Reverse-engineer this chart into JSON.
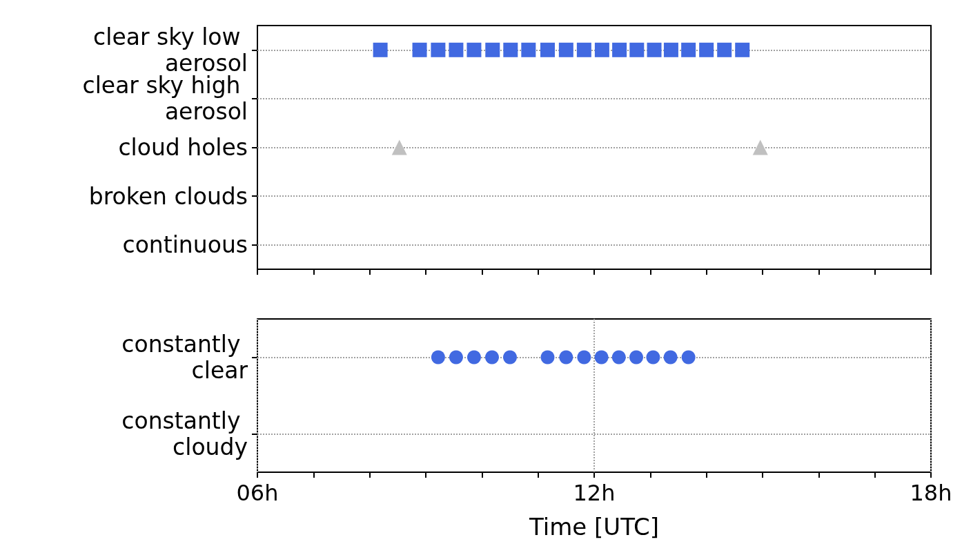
{
  "chart_data": [
    {
      "type": "scatter",
      "orientation": "horizontal",
      "categories": [
        "clear sky low aerosol",
        "clear sky high aerosol",
        "cloud holes",
        "broken clouds",
        "continuous"
      ],
      "xlim": [
        6,
        18
      ],
      "xticks": [
        {
          "value": 6,
          "label": null
        },
        {
          "value": 7,
          "label": null
        },
        {
          "value": 8,
          "label": null
        },
        {
          "value": 9,
          "label": null
        },
        {
          "value": 10,
          "label": null
        },
        {
          "value": 11,
          "label": null
        },
        {
          "value": 12,
          "label": null
        },
        {
          "value": 13,
          "label": null
        },
        {
          "value": 14,
          "label": null
        },
        {
          "value": 15,
          "label": null
        },
        {
          "value": 16,
          "label": null
        },
        {
          "value": 17,
          "label": null
        },
        {
          "value": 18,
          "label": null
        }
      ],
      "tick_labels": "y",
      "grid": true,
      "series": [
        {
          "color": "#4169e1",
          "marker": "square",
          "x": [
            "clear sky low aerosol",
            "clear sky low aerosol",
            "clear sky low aerosol",
            "clear sky low aerosol",
            "clear sky low aerosol",
            "clear sky low aerosol",
            "clear sky low aerosol",
            "clear sky low aerosol",
            "clear sky low aerosol",
            "clear sky low aerosol",
            "clear sky low aerosol",
            "clear sky low aerosol",
            "clear sky low aerosol",
            "clear sky low aerosol",
            "clear sky low aerosol",
            "clear sky low aerosol",
            "clear sky low aerosol",
            "clear sky low aerosol",
            "clear sky low aerosol",
            "clear sky low aerosol"
          ],
          "values": [
            8.19,
            8.89,
            9.22,
            9.54,
            9.86,
            10.19,
            10.51,
            10.83,
            11.17,
            11.5,
            11.82,
            12.14,
            12.45,
            12.76,
            13.07,
            13.37,
            13.68,
            14.0,
            14.32,
            14.64
          ]
        },
        {
          "color": "#c0c0c0",
          "marker": "triangle",
          "x": [
            "cloud holes",
            "cloud holes"
          ],
          "values": [
            8.53,
            14.96
          ]
        }
      ]
    },
    {
      "type": "scatter",
      "orientation": "horizontal",
      "categories": [
        "constantly clear",
        "constantly cloudy"
      ],
      "xlabel": "Time [UTC]",
      "xlim": [
        6,
        18
      ],
      "xticks": [
        {
          "value": 6,
          "label": "06h"
        },
        {
          "value": 7,
          "label": null
        },
        {
          "value": 8,
          "label": null
        },
        {
          "value": 9,
          "label": null
        },
        {
          "value": 10,
          "label": null
        },
        {
          "value": 11,
          "label": null
        },
        {
          "value": 12,
          "label": "12h"
        },
        {
          "value": 13,
          "label": null
        },
        {
          "value": 14,
          "label": null
        },
        {
          "value": 15,
          "label": null
        },
        {
          "value": 16,
          "label": null
        },
        {
          "value": 17,
          "label": null
        },
        {
          "value": 18,
          "label": "18h"
        }
      ],
      "grid": true,
      "series": [
        {
          "color": "#4169e1",
          "marker": "circle",
          "x": [
            "constantly clear",
            "constantly clear",
            "constantly clear",
            "constantly clear",
            "constantly clear",
            "constantly clear",
            "constantly clear",
            "constantly clear",
            "constantly clear",
            "constantly clear",
            "constantly clear",
            "constantly clear",
            "constantly clear",
            "constantly clear"
          ],
          "values": [
            9.22,
            9.54,
            9.86,
            10.18,
            10.5,
            11.17,
            11.5,
            11.82,
            12.13,
            12.44,
            12.75,
            13.05,
            13.36,
            13.68
          ]
        }
      ]
    }
  ]
}
